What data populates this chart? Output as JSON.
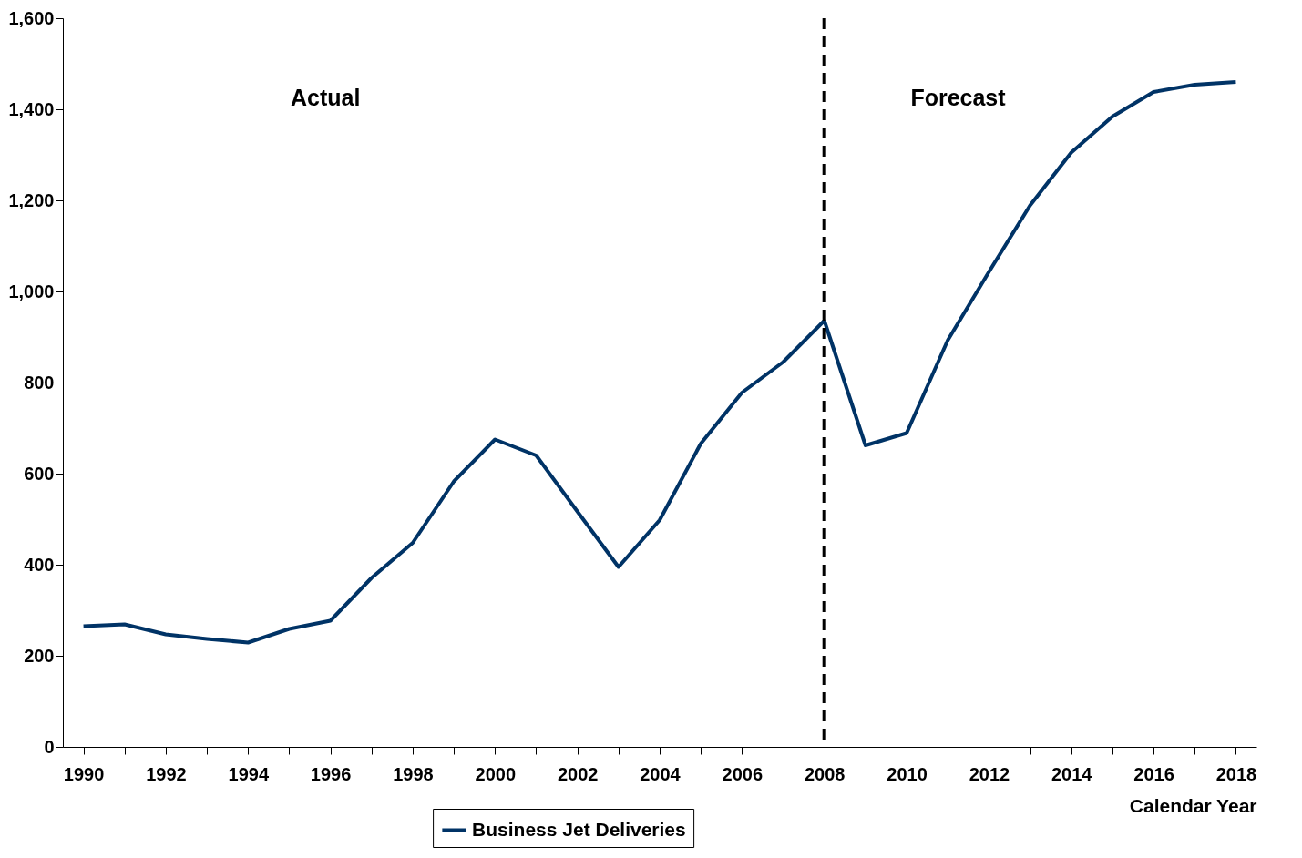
{
  "chart_data": {
    "type": "line",
    "xlabel": "Calendar Year",
    "x": [
      1990,
      1991,
      1992,
      1993,
      1994,
      1995,
      1996,
      1997,
      1998,
      1999,
      2000,
      2001,
      2002,
      2003,
      2004,
      2005,
      2006,
      2007,
      2008,
      2009,
      2010,
      2011,
      2012,
      2013,
      2014,
      2015,
      2016,
      2017,
      2018
    ],
    "series": [
      {
        "name": "Business Jet Deliveries",
        "color": "#003366",
        "values": [
          265,
          269,
          247,
          237,
          229,
          259,
          277,
          371,
          448,
          583,
          675,
          640,
          517,
          395,
          498,
          666,
          778,
          845,
          936,
          662,
          689,
          893,
          1043,
          1189,
          1305,
          1384,
          1438,
          1454,
          1460
        ]
      }
    ],
    "xlim": [
      1989.5,
      2018.5
    ],
    "xticks": [
      1990,
      {
        "value": 1991,
        "label": null
      },
      1992,
      {
        "value": 1993,
        "label": null
      },
      1994,
      {
        "value": 1995,
        "label": null
      },
      1996,
      {
        "value": 1997,
        "label": null
      },
      1998,
      {
        "value": 1999,
        "label": null
      },
      2000,
      {
        "value": 2001,
        "label": null
      },
      2002,
      {
        "value": 2003,
        "label": null
      },
      2004,
      {
        "value": 2005,
        "label": null
      },
      2006,
      {
        "value": 2007,
        "label": null
      },
      2008,
      {
        "value": 2009,
        "label": null
      },
      2010,
      {
        "value": 2011,
        "label": null
      },
      2012,
      {
        "value": 2013,
        "label": null
      },
      2014,
      {
        "value": 2015,
        "label": null
      },
      2016,
      {
        "value": 2017,
        "label": null
      },
      2018
    ],
    "ylim": [
      0,
      1600
    ],
    "yticks": [
      0,
      200,
      400,
      600,
      800,
      {
        "value": 1000,
        "label": "1,000"
      },
      {
        "value": 1200,
        "label": "1,200"
      },
      {
        "value": 1400,
        "label": "1,400"
      },
      {
        "value": 1600,
        "label": "1,600"
      }
    ],
    "ref_lines": [
      {
        "axis": "x",
        "value": 2008,
        "color": "#000000",
        "line_style": "dashed"
      }
    ],
    "annotations": [
      "Actual",
      "Forecast"
    ],
    "grid": false,
    "legend": "bottom",
    "marker": "none",
    "line_style": "solid"
  }
}
